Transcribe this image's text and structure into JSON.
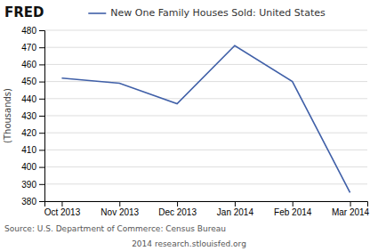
{
  "chart_data": {
    "type": "line",
    "title": "New One Family Houses Sold: United States",
    "categories": [
      "Oct 2013",
      "Nov 2013",
      "Dec 2013",
      "Jan 2014",
      "Feb 2014",
      "Mar 2014"
    ],
    "values": [
      452,
      449,
      437,
      471,
      450,
      385
    ],
    "color": "#4060A8",
    "ylim": [
      380,
      480
    ],
    "yticks": [
      380,
      390,
      400,
      410,
      420,
      430,
      440,
      450,
      460,
      470,
      480
    ],
    "ylabel": "(Thousands)",
    "grid": true,
    "legend": "top",
    "annotations": [
      "FRED",
      "Source: U.S. Department of Commerce: Census Bureau",
      "2014 research.stlouisfed.org"
    ]
  }
}
